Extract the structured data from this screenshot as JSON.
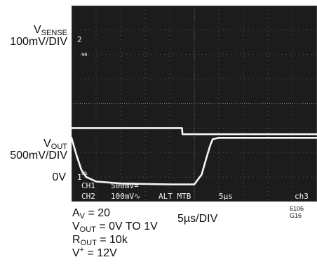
{
  "ch2_label": {
    "base": "V",
    "sub": "SENSE",
    "scale": "100mV/DIV"
  },
  "ch1_label": {
    "base": "V",
    "sub": "OUT",
    "scale": "500mV/DIV",
    "zero": "0V"
  },
  "readout": {
    "ch1": "CH1",
    "ch1_scale": "500mV=",
    "ch2": "CH2",
    "ch2_scale": "100mV∿",
    "mode": "ALT MTB",
    "time": "5µs",
    "trig": "ch3",
    "ch2_marker": "2",
    "ch1_marker": "1",
    "pct100": "90",
    "pct0": "0%"
  },
  "conditions": [
    {
      "base": "A",
      "sub": "V",
      "rest": " = 20"
    },
    {
      "base": "V",
      "sub": "OUT",
      "rest": " = 0V TO 1V"
    },
    {
      "base": "R",
      "sub": "OUT",
      "rest": " = 10k"
    },
    {
      "base": "V",
      "sup": "+",
      "rest": " = 12V"
    }
  ],
  "timebase": "5µs/DIV",
  "figure_id": "6106 G16",
  "colors": {
    "screen": "#1c1c1c",
    "trace": "#f4f4f4",
    "grid": "#8a8a8a"
  },
  "chart_data": {
    "type": "line",
    "xlabel": "5µs/DIV",
    "x_divisions": 10,
    "y_divisions": 8,
    "series": [
      {
        "name": "VSENSE",
        "scale": "100mV/DIV",
        "x": [
          0,
          4.5,
          4.52,
          10
        ],
        "y": [
          1,
          1,
          0.75,
          0.75
        ]
      },
      {
        "name": "VOUT",
        "scale": "500mV/DIV",
        "x": [
          0,
          0.2,
          0.4,
          0.6,
          1.0,
          2.0,
          3.0,
          4.0,
          5.0,
          5.3,
          5.5,
          5.65,
          5.75,
          6.0,
          10
        ],
        "y": [
          2.0,
          1.3,
          0.7,
          0.4,
          0.22,
          0.14,
          0.12,
          0.1,
          0.1,
          0.5,
          1.2,
          1.7,
          1.95,
          2.0,
          2.0
        ]
      }
    ]
  }
}
